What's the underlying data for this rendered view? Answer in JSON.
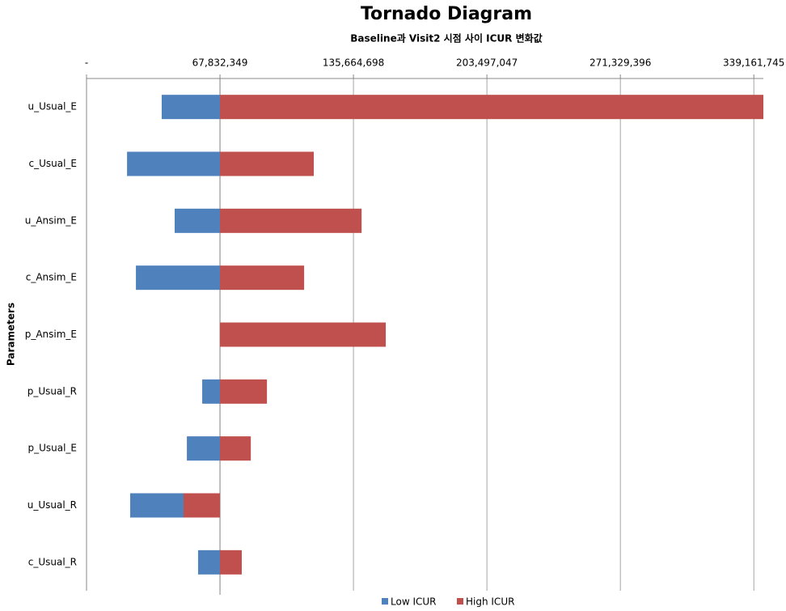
{
  "chart_data": {
    "type": "bar",
    "orientation": "horizontal",
    "title": "Tornado Diagram",
    "subtitle": "Baseline과 Visit2 시점 사이 ICUR 변화값",
    "y_label": "Parameters",
    "base_value": 67832349,
    "categories": [
      "u_Usual_E",
      "c_Usual_E",
      "u_Ansim_E",
      "c_Ansim_E",
      "p_Ansim_E",
      "p_Usual_R",
      "p_Usual_E",
      "u_Usual_R",
      "c_Usual_R"
    ],
    "series": [
      {
        "name": "Low ICUR",
        "color": "#4f81bd",
        "values": [
          38200000,
          20600000,
          44800000,
          25100000,
          67832349,
          58800000,
          51000000,
          22200000,
          56700000
        ]
      },
      {
        "name": "High ICUR",
        "color": "#c0504d",
        "values": [
          344000000,
          115500000,
          139800000,
          110600000,
          152100000,
          91700000,
          83500000,
          49300000,
          78900000
        ]
      }
    ],
    "xlim": [
      0,
      344000000
    ],
    "xticks": [
      {
        "value": 0,
        "label": "-"
      },
      {
        "value": 67832349,
        "label": "67,832,349"
      },
      {
        "value": 135664698,
        "label": "135,664,698"
      },
      {
        "value": 203497047,
        "label": "203,497,047"
      },
      {
        "value": 271329396,
        "label": "271,329,396"
      },
      {
        "value": 339161745,
        "label": "339,161,745"
      }
    ],
    "grid": true,
    "legend": "bottom"
  }
}
